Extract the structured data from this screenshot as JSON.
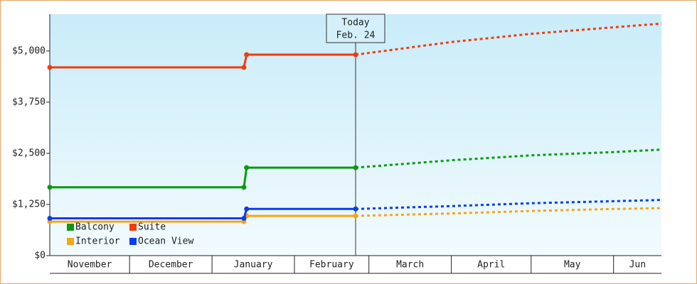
{
  "chart_data": {
    "type": "line",
    "x": [
      0,
      73,
      74,
      115,
      151,
      181,
      212,
      230
    ],
    "xlim": [
      0,
      230
    ],
    "month_bands": [
      {
        "label": "November",
        "start": 0
      },
      {
        "label": "December",
        "start": 30
      },
      {
        "label": "January",
        "start": 61
      },
      {
        "label": "February",
        "start": 92
      },
      {
        "label": "March",
        "start": 120
      },
      {
        "label": "April",
        "start": 151
      },
      {
        "label": "May",
        "start": 181
      },
      {
        "label": "Jun",
        "start": 212
      }
    ],
    "ylim": [
      0,
      5900
    ],
    "yticks": [
      {
        "value": 0,
        "label": "$0"
      },
      {
        "value": 1250,
        "label": "$1,250"
      },
      {
        "value": 2500,
        "label": "$2,500"
      },
      {
        "value": 3750,
        "label": "$3,750"
      },
      {
        "value": 5000,
        "label": "$5,000"
      }
    ],
    "today": {
      "x": 115,
      "label": "Today",
      "date": "Feb. 24"
    },
    "series": [
      {
        "name": "Balcony",
        "color": "#0a9a12",
        "values": [
          1670,
          1670,
          2150,
          2150,
          2330,
          2450,
          2530,
          2590
        ]
      },
      {
        "name": "Suite",
        "color": "#f03c10",
        "values": [
          4600,
          4600,
          4910,
          4910,
          5220,
          5420,
          5580,
          5670
        ]
      },
      {
        "name": "Interior",
        "color": "#f5a614",
        "values": [
          830,
          830,
          970,
          970,
          1030,
          1090,
          1140,
          1160
        ]
      },
      {
        "name": "Ocean View",
        "color": "#0a3cf0",
        "values": [
          910,
          910,
          1140,
          1140,
          1210,
          1280,
          1330,
          1360
        ]
      }
    ]
  }
}
